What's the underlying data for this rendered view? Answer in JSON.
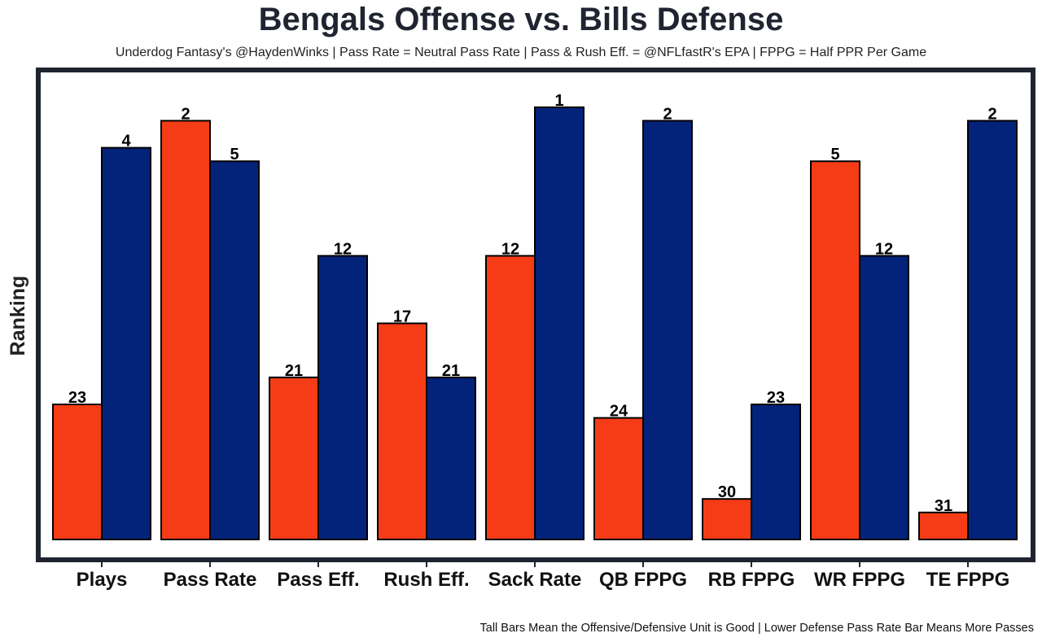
{
  "chart_data": {
    "type": "bar",
    "title": "Bengals Offense vs. Bills Defense",
    "subtitle": "Underdog Fantasy's @HaydenWinks | Pass Rate = Neutral Pass Rate | Pass & Rush Eff. = @NFLfastR's EPA | FPPG = Half PPR Per Game",
    "footnote": "Tall Bars Mean the Offensive/Defensive Unit is Good | Lower Defense Pass Rate Bar Means More Passes",
    "xlabel": "",
    "ylabel": "Ranking",
    "categories": [
      "Plays",
      "Pass Rate",
      "Pass Eff.",
      "Rush Eff.",
      "Sack Rate",
      "QB FPPG",
      "RB FPPG",
      "WR FPPG",
      "TE FPPG"
    ],
    "series": [
      {
        "name": "Bengals Offense",
        "color": "#f53c16",
        "values": [
          23,
          2,
          21,
          17,
          12,
          24,
          30,
          5,
          31
        ]
      },
      {
        "name": "Bills Defense",
        "color": "#03237a",
        "values": [
          4,
          5,
          12,
          21,
          1,
          2,
          23,
          12,
          2
        ]
      }
    ],
    "scale_note": "bar height = 33 - rank",
    "rank_max": 33,
    "grid": false,
    "legend": "none"
  }
}
